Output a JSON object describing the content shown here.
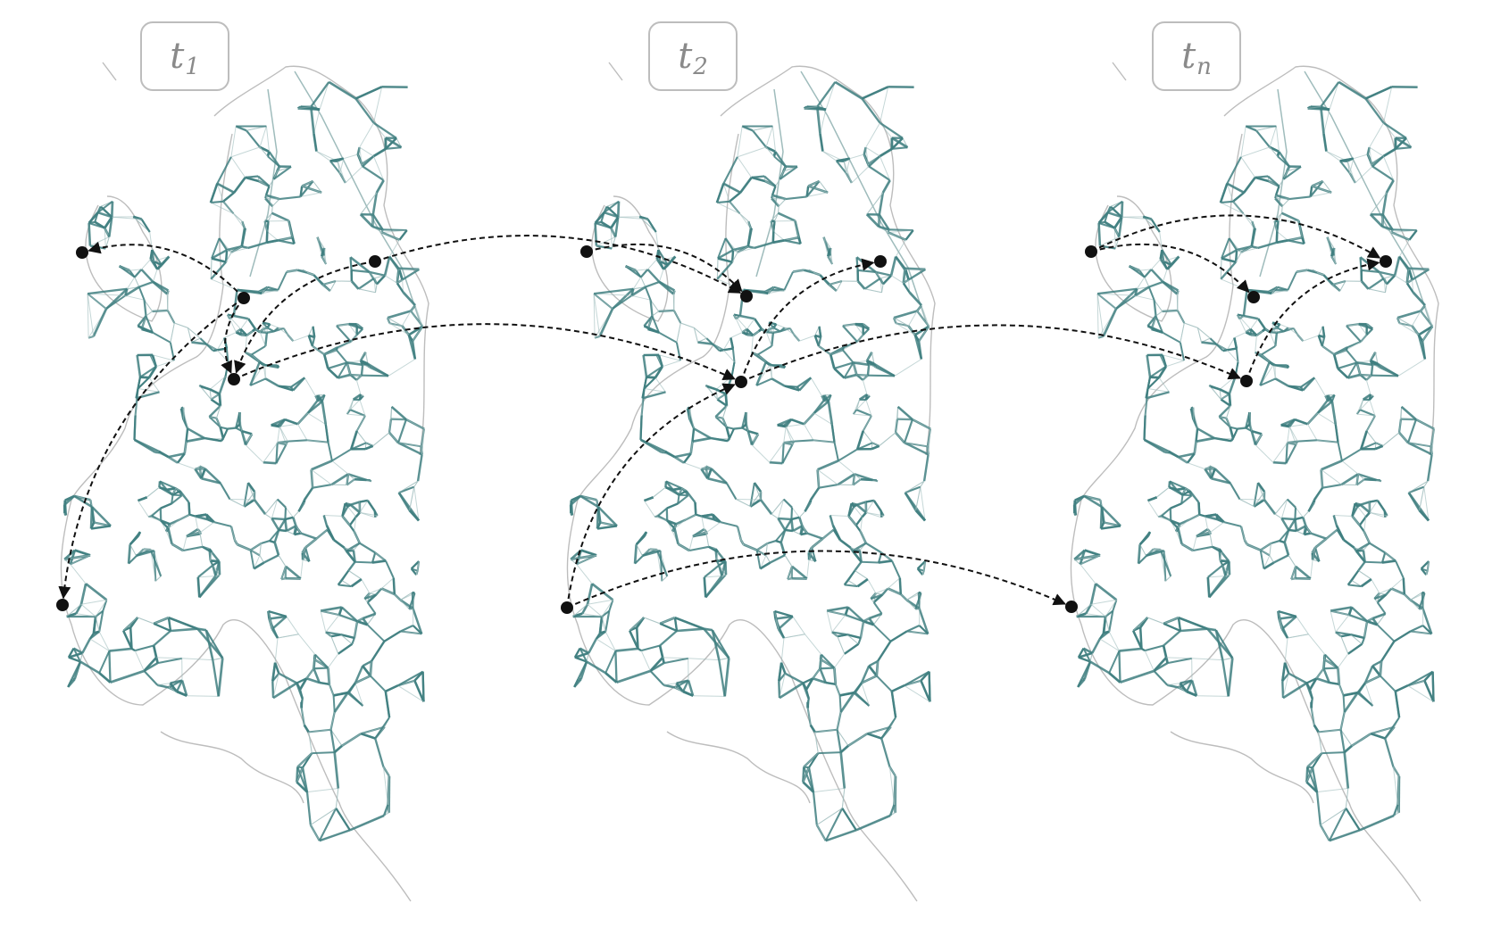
{
  "colors": {
    "network": "#3f7f80",
    "network_light": "#9fbcbc",
    "coast": "#bdbdbd",
    "arrow": "#111111",
    "label_border": "#bdbdbd",
    "label_text": "#8a8a8a"
  },
  "panels": [
    {
      "label_main": "t",
      "label_sub": "1",
      "flows": [
        {
          "from": "n2",
          "to": "n1"
        },
        {
          "from": "n2",
          "to": "n4"
        },
        {
          "from": "n3",
          "to": "n4"
        },
        {
          "from": "n2",
          "to": "n5"
        }
      ]
    },
    {
      "label_main": "t",
      "label_sub": "2",
      "flows": [
        {
          "from": "n1",
          "to": "n2"
        },
        {
          "from": "n4",
          "to": "n3"
        },
        {
          "from": "n5",
          "to": "n4"
        }
      ]
    },
    {
      "label_main": "t",
      "label_sub": "n",
      "flows": [
        {
          "from": "n1",
          "to": "n2"
        },
        {
          "from": "n1",
          "to": "n3"
        },
        {
          "from": "n4",
          "to": "n3"
        }
      ]
    }
  ],
  "cross_flows": [
    {
      "from_panel": 0,
      "from": "n3",
      "to_panel": 1,
      "to": "n2"
    },
    {
      "from_panel": 0,
      "from": "n4",
      "to_panel": 1,
      "to": "n4"
    },
    {
      "from_panel": 1,
      "from": "n4",
      "to_panel": 2,
      "to": "n4"
    },
    {
      "from_panel": 1,
      "from": "n5",
      "to_panel": 2,
      "to": "n5"
    }
  ]
}
